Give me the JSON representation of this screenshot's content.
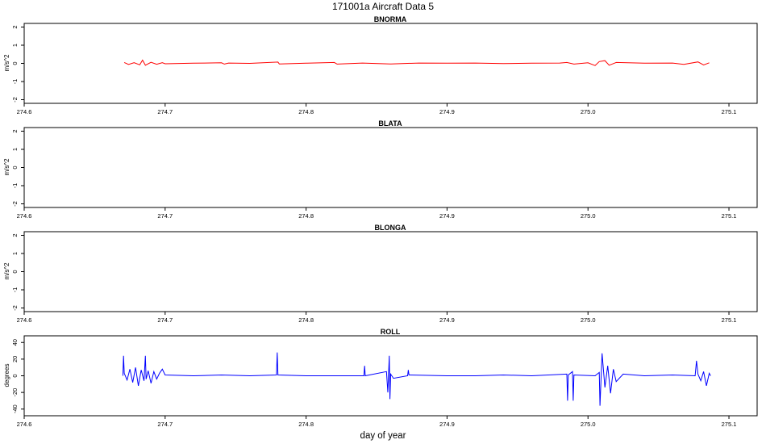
{
  "figure": {
    "title": "171001a   Aircraft Data 5",
    "xlabel": "day of year"
  },
  "chart_data": [
    {
      "type": "line",
      "title": "BNORMA",
      "ylabel": "m/s^2",
      "xlim": [
        274.6,
        275.12
      ],
      "ylim": [
        -2.2,
        2.2
      ],
      "xticks": [
        274.6,
        274.7,
        274.8,
        274.9,
        275.0,
        275.1
      ],
      "xtick_labels": [
        "274.6",
        "274.7",
        "274.8",
        "274.9",
        "275.0",
        "275.1"
      ],
      "yticks": [
        -2,
        -1,
        0,
        1,
        2
      ],
      "ytick_labels": [
        "-2",
        "-1",
        "0",
        "1",
        "2"
      ],
      "series": [
        {
          "color": "#ff0000",
          "x": [
            274.671,
            274.674,
            274.678,
            274.682,
            274.684,
            274.686,
            274.69,
            274.694,
            274.698,
            274.7,
            274.72,
            274.74,
            274.742,
            274.745,
            274.76,
            274.78,
            274.781,
            274.8,
            274.82,
            274.822,
            274.84,
            274.86,
            274.88,
            274.9,
            274.92,
            274.94,
            274.96,
            274.98,
            274.985,
            274.99,
            275.0,
            275.005,
            275.008,
            275.012,
            275.015,
            275.02,
            275.04,
            275.06,
            275.068,
            275.078,
            275.082,
            275.086
          ],
          "y": [
            0.05,
            -0.06,
            0.04,
            -0.08,
            0.18,
            -0.1,
            0.06,
            -0.05,
            0.04,
            -0.02,
            0.01,
            0.03,
            -0.04,
            0.02,
            0.0,
            0.07,
            -0.03,
            0.01,
            0.05,
            -0.04,
            0.02,
            -0.03,
            0.02,
            0.01,
            0.02,
            -0.01,
            0.01,
            0.02,
            0.05,
            -0.04,
            0.03,
            -0.12,
            0.1,
            0.15,
            -0.1,
            0.05,
            0.01,
            0.02,
            -0.06,
            0.08,
            -0.09,
            0.03
          ]
        }
      ]
    },
    {
      "type": "line",
      "title": "BLATA",
      "ylabel": "m/s^2",
      "xlim": [
        274.6,
        275.12
      ],
      "ylim": [
        -2.2,
        2.2
      ],
      "xticks": [
        274.6,
        274.7,
        274.8,
        274.9,
        275.0,
        275.1
      ],
      "xtick_labels": [
        "274.6",
        "274.7",
        "274.8",
        "274.9",
        "275.0",
        "275.1"
      ],
      "yticks": [
        -2,
        -1,
        0,
        1,
        2
      ],
      "ytick_labels": [
        "-2",
        "-1",
        "0",
        "1",
        "2"
      ],
      "series": []
    },
    {
      "type": "line",
      "title": "BLONGA",
      "ylabel": "m/s^2",
      "xlim": [
        274.6,
        275.12
      ],
      "ylim": [
        -2.2,
        2.2
      ],
      "xticks": [
        274.6,
        274.7,
        274.8,
        274.9,
        275.0,
        275.1
      ],
      "xtick_labels": [
        "274.6",
        "274.7",
        "274.8",
        "274.9",
        "275.0",
        "275.1"
      ],
      "yticks": [
        -2,
        -1,
        0,
        1,
        2
      ],
      "ytick_labels": [
        "-2",
        "-1",
        "0",
        "1",
        "2"
      ],
      "series": []
    },
    {
      "type": "line",
      "title": "ROLL",
      "ylabel": "degrees",
      "xlim": [
        274.6,
        275.12
      ],
      "ylim": [
        -48,
        48
      ],
      "xticks": [
        274.6,
        274.7,
        274.8,
        274.9,
        275.0,
        275.1
      ],
      "xtick_labels": [
        "274.6",
        "274.7",
        "274.8",
        "274.9",
        "275.0",
        "275.1"
      ],
      "yticks": [
        -40,
        -20,
        0,
        20,
        40
      ],
      "ytick_labels": [
        "-40",
        "-20",
        "0",
        "20",
        "40"
      ],
      "series": [
        {
          "color": "#0000ff",
          "x": [
            274.67,
            274.6705,
            274.671,
            274.673,
            274.675,
            274.677,
            274.679,
            274.681,
            274.683,
            274.685,
            274.686,
            274.6865,
            274.688,
            274.69,
            274.692,
            274.694,
            274.696,
            274.698,
            274.7,
            274.72,
            274.74,
            274.76,
            274.779,
            274.7795,
            274.78,
            274.8,
            274.82,
            274.841,
            274.8415,
            274.842,
            274.857,
            274.858,
            274.859,
            274.8595,
            274.86,
            274.862,
            274.872,
            274.8725,
            274.873,
            274.9,
            274.92,
            274.94,
            274.96,
            274.985,
            274.9855,
            274.986,
            274.989,
            274.9895,
            274.99,
            275.005,
            275.008,
            275.0085,
            275.01,
            275.012,
            275.014,
            275.016,
            275.018,
            275.02,
            275.025,
            275.04,
            275.06,
            275.076,
            275.077,
            275.078,
            275.08,
            275.082,
            275.084,
            275.086,
            275.087
          ],
          "y": [
            0,
            24,
            3,
            -5,
            8,
            -8,
            10,
            -12,
            7,
            -6,
            24,
            -4,
            6,
            -9,
            5,
            -4,
            3,
            8,
            1,
            0,
            1,
            0,
            1,
            28,
            1,
            0,
            0,
            0,
            12,
            0,
            5,
            -20,
            24,
            -28,
            2,
            -3,
            0,
            7,
            1,
            0,
            0,
            1,
            0,
            2,
            -30,
            1,
            5,
            -30,
            1,
            0,
            4,
            -36,
            27,
            -14,
            12,
            -21,
            8,
            -7,
            2,
            0,
            1,
            0,
            18,
            2,
            -6,
            5,
            -12,
            3,
            0
          ]
        }
      ]
    }
  ]
}
